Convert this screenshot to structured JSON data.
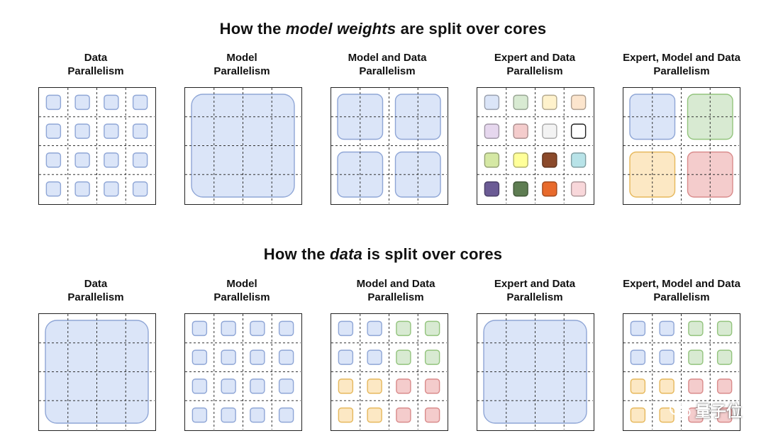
{
  "titles": {
    "top_pre": "How the ",
    "top_em": "model weights",
    "top_post": " are split over cores",
    "bottom_pre": "How the ",
    "bottom_em": "data",
    "bottom_post": " is split over cores"
  },
  "labels": {
    "data": [
      "Data",
      "Parallelism"
    ],
    "model": [
      "Model",
      "Parallelism"
    ],
    "model_data": [
      "Model and Data",
      "Parallelism"
    ],
    "expert_data": [
      "Expert and Data",
      "Parallelism"
    ],
    "expert_model_data": [
      "Expert, Model and Data",
      "Parallelism"
    ]
  },
  "colors": {
    "blue_fill": "#dbe5f8",
    "blue_stroke": "#8fa6d6",
    "green_fill": "#d8ead2",
    "green_stroke": "#93c47d",
    "orange_fill": "#fce8c4",
    "orange_stroke": "#e6b85c",
    "red_fill": "#f4cccc",
    "red_stroke": "#d98b8b",
    "expert_palette": [
      [
        "#dbe5f8",
        "#d8ead2",
        "#fff2cc",
        "#fce5cd"
      ],
      [
        "#e6d7ee",
        "#f4cccc",
        "#f3f3f3",
        "#ffffff"
      ],
      [
        "#d5e8a4",
        "#ffff99",
        "#8b4a2b",
        "#b8e3e8"
      ],
      [
        "#6b5b95",
        "#5e7d52",
        "#e86a2c",
        "#f8d7da"
      ]
    ]
  },
  "watermark": {
    "text": "量子位",
    "icon": "wechat-icon"
  }
}
